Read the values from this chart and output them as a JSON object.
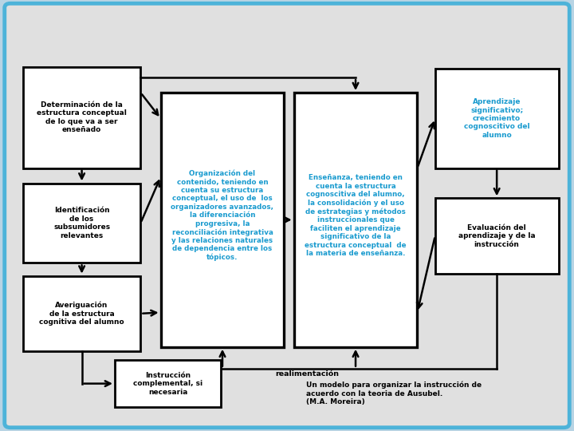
{
  "bg_outer": "#b8d4e4",
  "bg_inner": "#e0e0e0",
  "blue": "#1a9bcf",
  "black": "#000000",
  "boxes": {
    "det": [
      0.04,
      0.61,
      0.205,
      0.235
    ],
    "iden": [
      0.04,
      0.39,
      0.205,
      0.185
    ],
    "aver": [
      0.04,
      0.185,
      0.205,
      0.175
    ],
    "org": [
      0.28,
      0.195,
      0.215,
      0.59
    ],
    "ens": [
      0.512,
      0.195,
      0.215,
      0.59
    ],
    "apren": [
      0.758,
      0.61,
      0.215,
      0.23
    ],
    "eval": [
      0.758,
      0.365,
      0.215,
      0.175
    ],
    "instr": [
      0.2,
      0.055,
      0.185,
      0.11
    ]
  },
  "caption": "Un modelo para organizar la instrucción de\nacuerdo con la teoria de Ausubel.\n(M.A. Moreira)"
}
